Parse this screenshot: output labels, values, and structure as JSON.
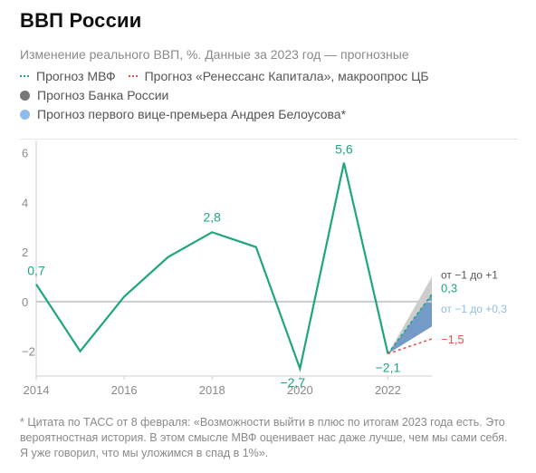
{
  "title": "ВВП России",
  "subtitle": "Изменение реального ВВП, %. Данные за 2023 год — прогнозные",
  "legend": {
    "imf": "Прогноз МВФ",
    "renaissance": "Прогноз «Ренессанс Капитала», макроопрос ЦБ",
    "cbr": "Прогноз Банка России",
    "belousov": "Прогноз первого вице-премьера Андрея Белоусова*"
  },
  "footnote": "* Цитата по ТАСС от 8 февраля: «Возможности выйти в плюс по итогам 2023 года есть. Это вероятностная история. В этом смысле МВФ оценивает нас даже лучше, чем мы сами себя. Я уже говорил, что мы уложимся в спад в 1%».",
  "colors": {
    "main": "#1fa67a",
    "imf": "#1fa67a",
    "renaissance": "#e0554c",
    "cbr": "#c8c8c8",
    "belousov": "#6f97c6",
    "belousov_label": "#8fbbe8"
  },
  "chart_data": {
    "type": "line",
    "title": "ВВП России",
    "ylim": [
      -3,
      6.5
    ],
    "xlim": [
      2014,
      2023
    ],
    "yticks": [
      6,
      4,
      2,
      0,
      -2
    ],
    "ytick_labels": [
      "6",
      "4",
      "2",
      "0",
      "−2"
    ],
    "xticks": [
      2014,
      2016,
      2018,
      2020,
      2022
    ],
    "xtick_labels": [
      "2014",
      "2016",
      "2018",
      "2020",
      "2022"
    ],
    "grid": false,
    "zero_line": true,
    "series": [
      {
        "role": "actual",
        "x": [
          2014,
          2015,
          2016,
          2017,
          2018,
          2019,
          2020,
          2021,
          2022
        ],
        "values": [
          0.7,
          -2.0,
          0.2,
          1.8,
          2.8,
          2.2,
          -2.7,
          5.6,
          -2.1
        ]
      },
      {
        "name": "Прогноз МВФ",
        "x": [
          2022,
          2023
        ],
        "values": [
          -2.1,
          0.3
        ]
      },
      {
        "name": "Прогноз «Ренессанс Капитала», макроопрос ЦБ",
        "x": [
          2022,
          2023
        ],
        "values": [
          -2.1,
          -1.5
        ]
      }
    ],
    "ranges": [
      {
        "name": "Прогноз Банка России",
        "x": 2023,
        "from": -1,
        "to": 1,
        "label": "от −1 до +1"
      },
      {
        "name": "Прогноз первого вице-премьера Андрея Белоусова*",
        "x": 2023,
        "from": -1,
        "to": 0.3,
        "label": "от −1 до +0,3"
      }
    ],
    "data_labels": [
      {
        "x": 2014,
        "y": 0.7,
        "text": "0,7"
      },
      {
        "x": 2018,
        "y": 2.8,
        "text": "2,8"
      },
      {
        "x": 2020,
        "y": -2.7,
        "text": "−2,7"
      },
      {
        "x": 2021,
        "y": 5.6,
        "text": "5,6"
      },
      {
        "x": 2022,
        "y": -2.1,
        "text": "−2,1"
      }
    ],
    "end_labels": [
      {
        "key": "imf",
        "text": "0,3"
      },
      {
        "key": "renaissance",
        "text": "−1,5"
      }
    ]
  }
}
